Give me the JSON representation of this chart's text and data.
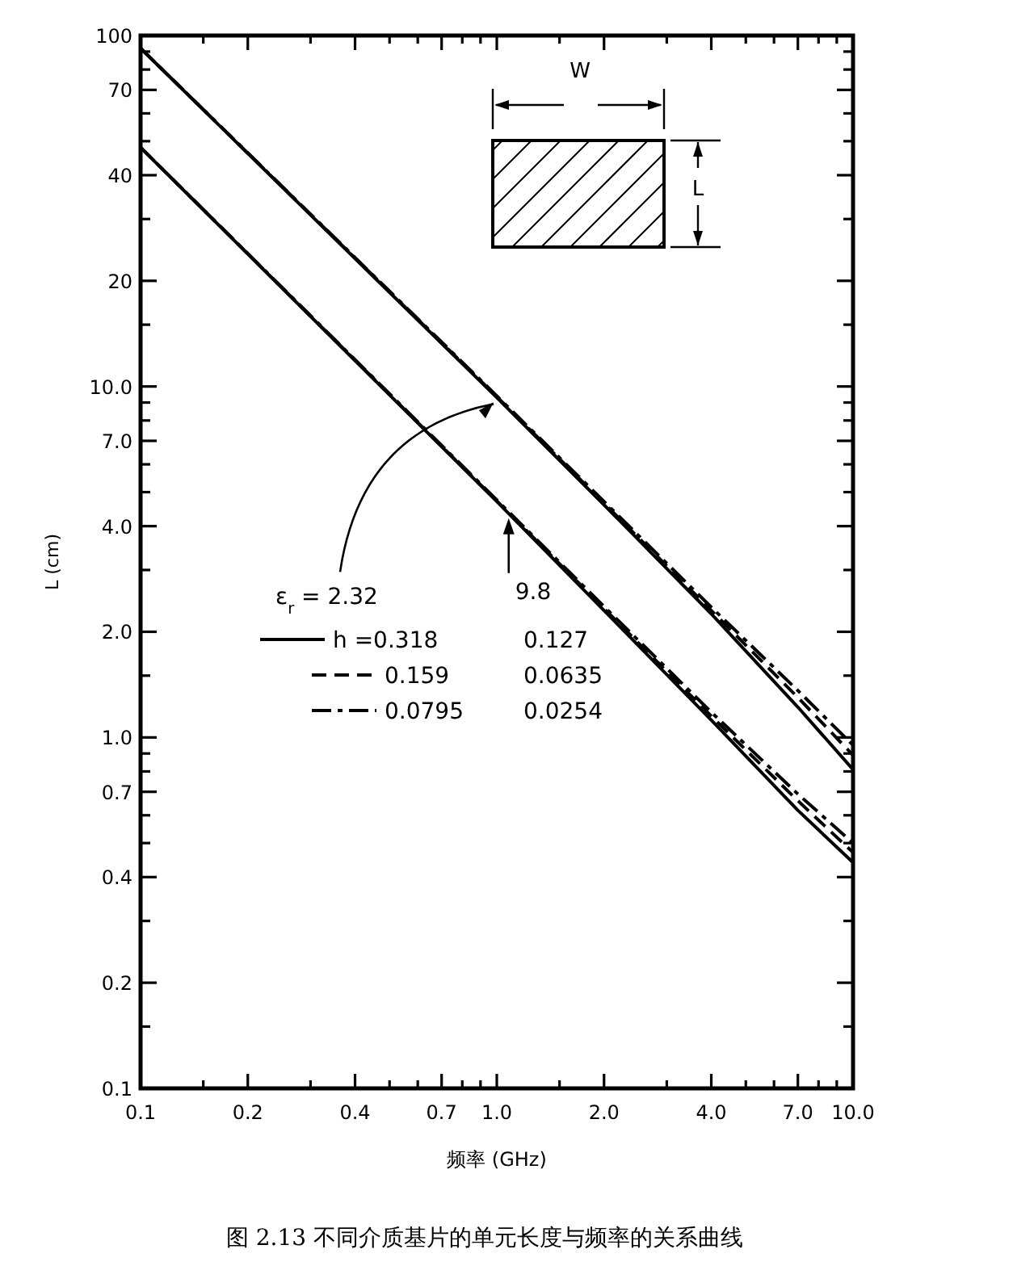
{
  "chart_data": {
    "type": "line",
    "xlabel": "频率 (GHz)",
    "ylabel": "L (cm)",
    "log": "xy",
    "grid": false,
    "legend": "left",
    "marker": "none",
    "x": [
      0.1,
      1,
      2,
      4,
      7,
      10
    ],
    "xlim": [
      0.1,
      10
    ],
    "ylim": [
      0.1,
      100
    ],
    "xticks": [
      0.1,
      {
        "value": 0.15,
        "label": null
      },
      0.2,
      {
        "value": 0.3,
        "label": null
      },
      0.4,
      {
        "value": 0.5,
        "label": null
      },
      {
        "value": 0.6,
        "label": null
      },
      0.7,
      {
        "value": 0.8,
        "label": null
      },
      {
        "value": 0.9,
        "label": null
      },
      {
        "value": 1,
        "label": "1.0"
      },
      {
        "value": 1.5,
        "label": null
      },
      {
        "value": 2,
        "label": "2.0"
      },
      {
        "value": 3,
        "label": null
      },
      {
        "value": 4,
        "label": "4.0"
      },
      {
        "value": 5,
        "label": null
      },
      {
        "value": 6,
        "label": null
      },
      {
        "value": 7,
        "label": "7.0"
      },
      {
        "value": 8,
        "label": null
      },
      {
        "value": 9,
        "label": null
      },
      {
        "value": 10,
        "label": "10.0"
      }
    ],
    "yticks": [
      0.1,
      {
        "value": 0.15,
        "label": null
      },
      0.2,
      {
        "value": 0.3,
        "label": null
      },
      0.4,
      {
        "value": 0.5,
        "label": null
      },
      {
        "value": 0.6,
        "label": null
      },
      0.7,
      {
        "value": 0.8,
        "label": null
      },
      {
        "value": 0.9,
        "label": null
      },
      {
        "value": 1,
        "label": "1.0"
      },
      {
        "value": 1.5,
        "label": null
      },
      {
        "value": 2,
        "label": "2.0"
      },
      {
        "value": 3,
        "label": null
      },
      {
        "value": 4,
        "label": "4.0"
      },
      {
        "value": 5,
        "label": null
      },
      {
        "value": 6,
        "label": null
      },
      {
        "value": 7,
        "label": "7.0"
      },
      {
        "value": 8,
        "label": null
      },
      {
        "value": 9,
        "label": null
      },
      {
        "value": 10,
        "label": "10.0"
      },
      {
        "value": 15,
        "label": null
      },
      20,
      {
        "value": 30,
        "label": null
      },
      40,
      {
        "value": 50,
        "label": null
      },
      {
        "value": 60,
        "label": null
      },
      70,
      {
        "value": 80,
        "label": null
      },
      {
        "value": 90,
        "label": null
      },
      100
    ],
    "series": [
      {
        "name": "h =0.318",
        "color": "#000000",
        "line_style": "solid",
        "values": [
          92,
          9.3,
          4.6,
          2.25,
          1.22,
          0.81
        ]
      },
      {
        "name": "0.127",
        "color": "#000000",
        "line_style": "solid",
        "values": [
          48,
          4.7,
          2.3,
          1.12,
          0.62,
          0.44
        ]
      },
      {
        "name": "0.159",
        "color": "#000000",
        "line_style": "dashed",
        "values": [
          92,
          9.35,
          4.65,
          2.3,
          1.3,
          0.89
        ]
      },
      {
        "name": "0.0635",
        "color": "#000000",
        "line_style": "dashed",
        "values": [
          48,
          4.72,
          2.33,
          1.15,
          0.66,
          0.47
        ]
      },
      {
        "name": "0.0795",
        "color": "#000000",
        "line_style": "dashdot",
        "values": [
          92,
          9.4,
          4.7,
          2.35,
          1.36,
          0.95
        ]
      },
      {
        "name": "0.0254",
        "color": "#000000",
        "line_style": "dashdot",
        "values": [
          48,
          4.75,
          2.36,
          1.18,
          0.69,
          0.5
        ]
      }
    ],
    "annotations": [
      {
        "text": "ε$_{r}$ = 2.32",
        "x": 1.0,
        "y": 9.3
      },
      {
        "text": "9.8",
        "x": 1.08,
        "y": 4.35
      },
      "W",
      "L",
      "图 2.13   不同介质基片的单元长度与频率的关系曲线"
    ]
  }
}
